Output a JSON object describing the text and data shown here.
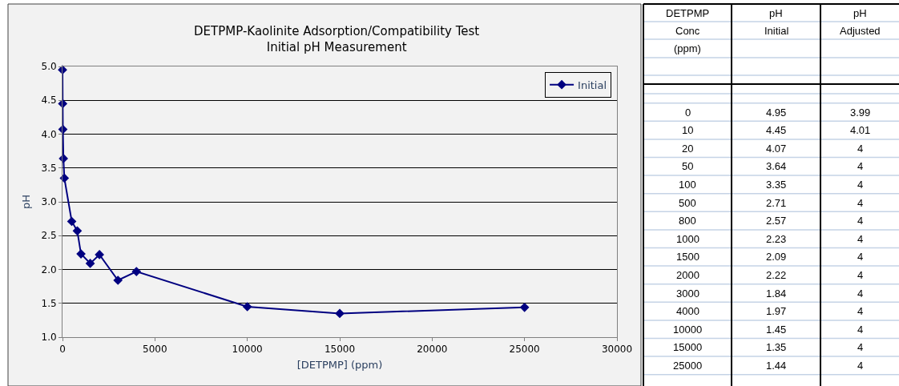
{
  "chart_data": [
    {
      "type": "line",
      "title": "DETPMP-Kaolinite Adsorption/Compatibility Test\nInitial pH Measurement",
      "xlabel": "[DETPMP] (ppm)",
      "ylabel": "pH",
      "x": [
        0,
        10,
        20,
        50,
        100,
        500,
        800,
        1000,
        1500,
        2000,
        3000,
        4000,
        10000,
        15000,
        25000
      ],
      "series": [
        {
          "name": "Initial",
          "color": "#000080",
          "values": [
            4.95,
            4.45,
            4.07,
            3.64,
            3.35,
            2.71,
            2.57,
            2.23,
            2.09,
            2.22,
            1.84,
            1.97,
            1.45,
            1.35,
            1.44
          ]
        }
      ],
      "xlim": [
        0,
        30000
      ],
      "xticks": [
        0,
        5000,
        10000,
        15000,
        20000,
        25000,
        30000
      ],
      "ylim": [
        1,
        5
      ],
      "yticks": [
        {
          "value": 1,
          "label": "1.0"
        },
        1.5,
        {
          "value": 2,
          "label": "2.0"
        },
        2.5,
        {
          "value": 3,
          "label": "3.0"
        },
        3.5,
        {
          "value": 4,
          "label": "4.0"
        },
        4.5,
        {
          "value": 5,
          "label": "5.0"
        }
      ],
      "grid": "y",
      "legend": "top right",
      "marker": "diamond",
      "line_style": "solid"
    },
    {
      "type": "other",
      "xlabel": "DETPMP\nConc\n(ppm)",
      "data_labels": true,
      "categories": [
        "0",
        "10",
        "20",
        "50",
        "100",
        "500",
        "800",
        "1000",
        "1500",
        "2000",
        "3000",
        "4000",
        "10000",
        "15000",
        "25000"
      ],
      "series": [
        {
          "name": "pH\nInitial",
          "values": [
            4.95,
            4.45,
            4.07,
            3.64,
            3.35,
            2.71,
            2.57,
            2.23,
            2.09,
            2.22,
            1.84,
            1.97,
            1.45,
            1.35,
            1.44
          ]
        },
        {
          "name": "pH\nAdjusted",
          "values": [
            3.99,
            4.01,
            4,
            4,
            4,
            4,
            4,
            4,
            4,
            4,
            4,
            4,
            4,
            4,
            4
          ]
        }
      ]
    }
  ]
}
